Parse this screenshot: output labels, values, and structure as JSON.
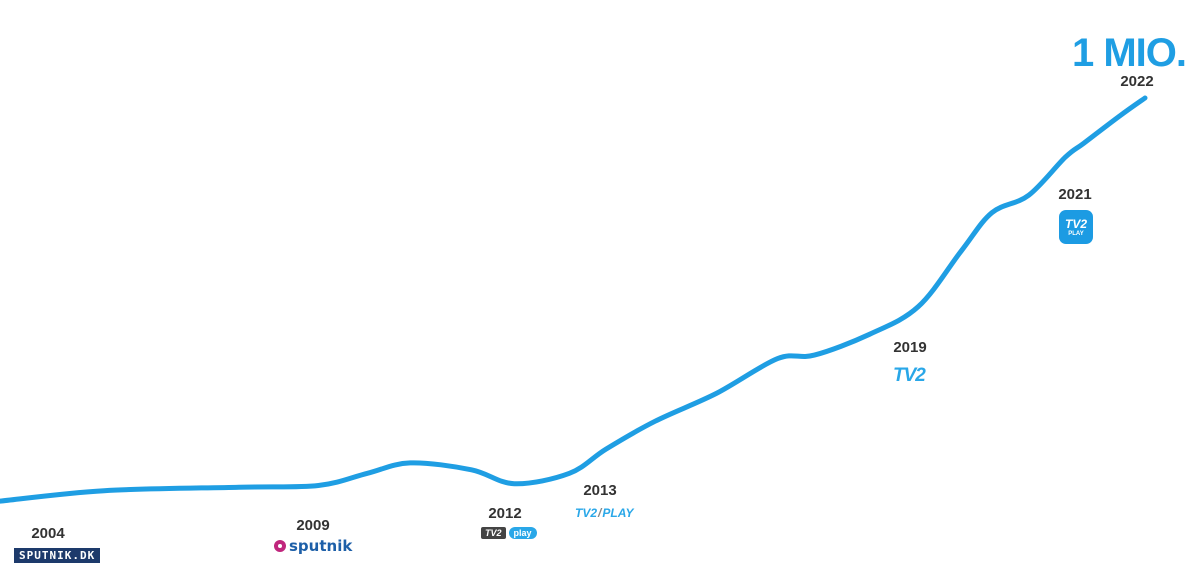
{
  "chart_data": {
    "type": "line",
    "title": "",
    "xlabel": "",
    "ylabel": "",
    "headline": "1 MIO.",
    "line_color": "#1f9ee3",
    "axes_visible": false,
    "grid": false,
    "x": [
      2003.3,
      2005,
      2007.2,
      2008.5,
      2009.3,
      2010,
      2011,
      2011.7,
      2012.6,
      2013.2,
      2014,
      2015,
      2016,
      2016.6,
      2017.5,
      2018.3,
      2019,
      2019.5,
      2020.1,
      2020.7,
      2021,
      2021.6,
      2022
    ],
    "y": [
      0.04,
      0.07,
      0.08,
      0.085,
      0.12,
      0.15,
      0.13,
      0.09,
      0.12,
      0.19,
      0.27,
      0.35,
      0.45,
      0.46,
      0.52,
      0.6,
      0.76,
      0.87,
      0.92,
      1.03,
      1.07,
      1.15,
      1.2
    ],
    "milestones": [
      {
        "year": "2004",
        "logo": "sputnik-dk-logo",
        "logo_text": "SPUTNIK.DK"
      },
      {
        "year": "2009",
        "logo": "sputnik-logo",
        "logo_text": "sputnik"
      },
      {
        "year": "2012",
        "logo": "tv2-play-logo",
        "logo_text": [
          "TV2",
          "play"
        ]
      },
      {
        "year": "2013",
        "logo": "tv2-play-italic-logo",
        "logo_text": [
          "TV2",
          "PLAY"
        ]
      },
      {
        "year": "2019",
        "logo": "tv2-logo",
        "logo_text": "TV2"
      },
      {
        "year": "2021",
        "logo": "tv2-play-app-icon",
        "logo_text": [
          "TV2",
          "PLAY"
        ]
      },
      {
        "year": "2022"
      }
    ]
  }
}
